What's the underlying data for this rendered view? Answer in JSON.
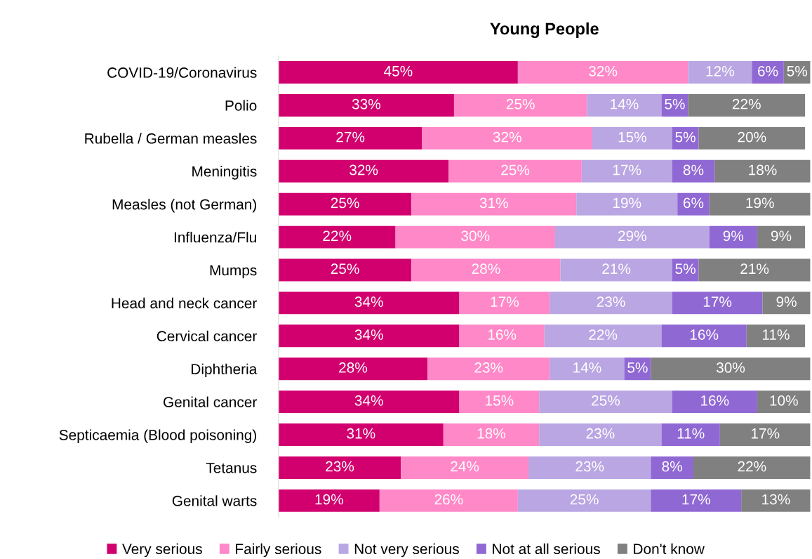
{
  "chart_data": {
    "type": "bar",
    "title": "Young People",
    "orientation": "horizontal",
    "stacked": true,
    "legend": "bottom",
    "grid": false,
    "categories": [
      "COVID-19/Coronavirus",
      "Polio",
      "Rubella / German measles",
      "Meningitis",
      "Measles (not German)",
      "Influenza/Flu",
      "Mumps",
      "Head and neck cancer",
      "Cervical cancer",
      "Diphtheria",
      "Genital cancer",
      "Septicaemia (Blood poisoning)",
      "Tetanus",
      "Genital warts"
    ],
    "series": [
      {
        "name": "Very serious",
        "color": "#d1006e",
        "values": [
          45,
          33,
          27,
          32,
          25,
          22,
          25,
          34,
          34,
          28,
          34,
          31,
          23,
          19
        ],
        "value_labels": [
          "45%",
          "33%",
          "27%",
          "32%",
          "25%",
          "22%",
          "25%",
          "34%",
          "34%",
          "28%",
          "34%",
          "31%",
          "23%",
          "19%"
        ]
      },
      {
        "name": "Fairly serious",
        "color": "#ff88c8",
        "values": [
          32,
          25,
          32,
          25,
          31,
          30,
          28,
          17,
          16,
          23,
          15,
          18,
          24,
          26
        ],
        "value_labels": [
          "32%",
          "25%",
          "32%",
          "25%",
          "31%",
          "30%",
          "28%",
          "17%",
          "16%",
          "23%",
          "15%",
          "18%",
          "24%",
          "26%"
        ]
      },
      {
        "name": "Not very serious",
        "color": "#b9a6e2",
        "values": [
          12,
          14,
          15,
          17,
          19,
          29,
          21,
          23,
          22,
          14,
          25,
          23,
          23,
          25
        ],
        "value_labels": [
          "12%",
          "14%",
          "15%",
          "17%",
          "19%",
          "29%",
          "21%",
          "23%",
          "22%",
          "14%",
          "25%",
          "23%",
          "23%",
          "25%"
        ]
      },
      {
        "name": "Not at all serious",
        "color": "#9068d4",
        "values": [
          6,
          5,
          5,
          8,
          6,
          9,
          5,
          17,
          16,
          5,
          16,
          11,
          8,
          17
        ],
        "value_labels": [
          "6%",
          "5%",
          "5%",
          "8%",
          "6%",
          "9%",
          "5%",
          "17%",
          "16%",
          "5%",
          "16%",
          "11%",
          "8%",
          "17%"
        ]
      },
      {
        "name": "Don't know",
        "color": "#808080",
        "values": [
          5,
          22,
          20,
          18,
          19,
          9,
          21,
          9,
          11,
          30,
          10,
          17,
          22,
          13
        ],
        "value_labels": [
          "5%",
          "22%",
          "20%",
          "18%",
          "19%",
          "9%",
          "21%",
          "9%",
          "11%",
          "30%",
          "10%",
          "17%",
          "22%",
          "13%"
        ]
      }
    ]
  }
}
